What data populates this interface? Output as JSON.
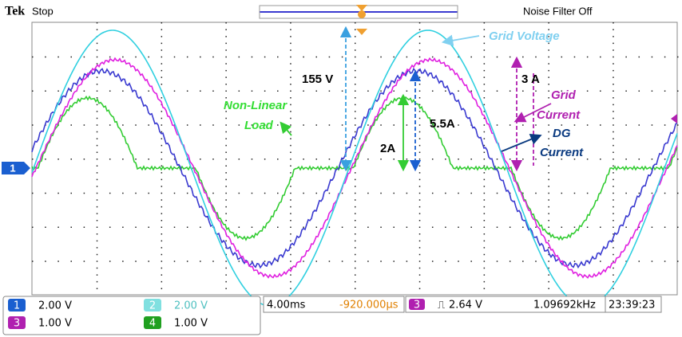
{
  "header": {
    "brand": "Tek",
    "status": "Stop",
    "filter": "Noise Filter Off"
  },
  "marker": "1",
  "annotations": {
    "grid_voltage": "Grid Voltage",
    "voltage_peak": "155 V",
    "nonlinear_load": [
      "Non-Linear",
      "Load"
    ],
    "grid_current_peak": "3 A",
    "grid_current": [
      "Grid",
      "Current"
    ],
    "dg_current_peak": "5.5A",
    "dg_current": [
      "DG",
      "Current"
    ],
    "load_current_peak": "2A"
  },
  "footer": {
    "channels": [
      {
        "num": "1",
        "scale": "2.00 V"
      },
      {
        "num": "2",
        "scale": "2.00 V"
      },
      {
        "num": "3",
        "scale": "1.00 V"
      },
      {
        "num": "4",
        "scale": "1.00 V"
      }
    ],
    "timebase": "4.00ms",
    "position": "-920.000µs",
    "trigger_channel": "3",
    "trigger_level": "2.64 V",
    "frequency": "1.09692kHz",
    "time": "23:39:23"
  }
}
